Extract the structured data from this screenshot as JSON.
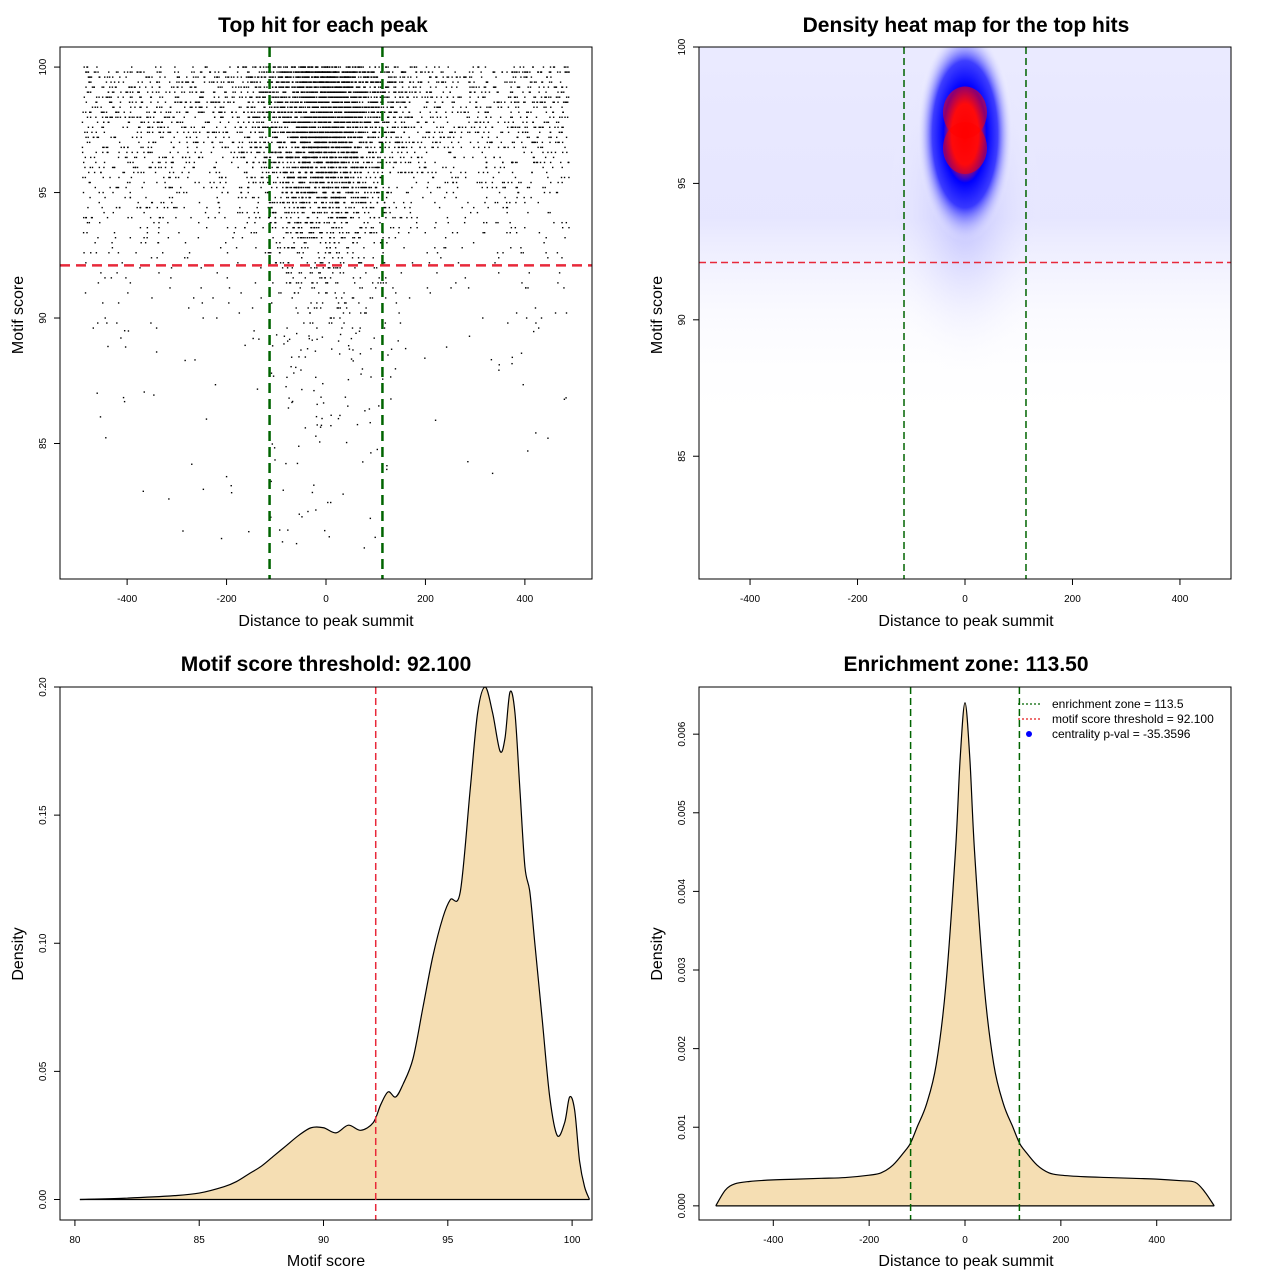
{
  "chart_data": [
    {
      "type": "scatter",
      "title": "Top hit for each peak",
      "xlabel": "Distance to peak summit",
      "ylabel": "Motif score",
      "xlim": [
        -535,
        535
      ],
      "ylim": [
        79.6,
        100.8
      ],
      "xticks": [
        -400,
        -200,
        0,
        200,
        400
      ],
      "yticks": [
        85,
        90,
        95,
        100
      ],
      "vlines": [
        -113.5,
        113.5
      ],
      "hline": 92.1,
      "point_model": {
        "x_range": [
          -490,
          490
        ],
        "y_range": [
          80.8,
          100
        ],
        "central_sd": 70,
        "score_rows_from": 89.5,
        "approx_points": 6000
      }
    },
    {
      "type": "heatmap",
      "title": "Density heat map for the top hits",
      "xlabel": "Distance to peak summit",
      "ylabel": "Motif score",
      "xlim": [
        -495,
        495
      ],
      "ylim": [
        80.5,
        100
      ],
      "xticks": [
        -400,
        -200,
        0,
        200,
        400
      ],
      "yticks": [
        85,
        90,
        95,
        100
      ],
      "vlines": [
        -113.5,
        113.5
      ],
      "hline": 92.1,
      "peaks": [
        {
          "x": 0,
          "y": 97.6,
          "amp": 1.0
        },
        {
          "x": 0,
          "y": 96.3,
          "amp": 1.0
        }
      ]
    },
    {
      "type": "area",
      "title": "Motif score threshold: 92.100",
      "xlabel": "Motif score",
      "ylabel": "Density",
      "xlim": [
        79.4,
        100.8
      ],
      "ylim": [
        -0.008,
        0.2
      ],
      "xticks": [
        80,
        85,
        90,
        95,
        100
      ],
      "yticks": [
        0.0,
        0.05,
        0.1,
        0.15,
        0.2
      ],
      "ytick_labels": [
        "0.00",
        "0.05",
        "0.10",
        "0.15",
        "0.20"
      ],
      "vline": 92.1,
      "x": [
        80.2,
        82,
        84,
        85,
        86,
        86.5,
        87,
        87.5,
        88,
        88.5,
        89,
        89.5,
        90,
        90.5,
        91,
        91.5,
        92,
        92.3,
        92.6,
        92.9,
        93.2,
        93.6,
        94,
        94.4,
        94.8,
        95.1,
        95.5,
        95.9,
        96.2,
        96.5,
        96.8,
        97.1,
        97.3,
        97.5,
        97.7,
        97.9,
        98.1,
        98.3,
        98.5,
        98.8,
        99.1,
        99.4,
        99.7,
        99.9,
        100.1,
        100.3,
        100.5,
        100.7
      ],
      "y": [
        0.0,
        0.0005,
        0.0015,
        0.0025,
        0.005,
        0.007,
        0.01,
        0.013,
        0.017,
        0.021,
        0.025,
        0.028,
        0.028,
        0.026,
        0.029,
        0.027,
        0.03,
        0.037,
        0.042,
        0.04,
        0.045,
        0.055,
        0.075,
        0.095,
        0.11,
        0.117,
        0.12,
        0.16,
        0.19,
        0.2,
        0.19,
        0.175,
        0.18,
        0.198,
        0.19,
        0.16,
        0.13,
        0.12,
        0.1,
        0.07,
        0.04,
        0.025,
        0.03,
        0.04,
        0.035,
        0.015,
        0.005,
        0.0
      ]
    },
    {
      "type": "area",
      "title": "Enrichment zone: 113.50",
      "xlabel": "Distance to peak summit",
      "ylabel": "Density",
      "xlim": [
        -555,
        555
      ],
      "ylim": [
        -0.00018,
        0.0066
      ],
      "xticks": [
        -400,
        -200,
        0,
        200,
        400
      ],
      "yticks": [
        0.0,
        0.001,
        0.002,
        0.003,
        0.004,
        0.005,
        0.006
      ],
      "ytick_labels": [
        "0.000",
        "0.001",
        "0.002",
        "0.003",
        "0.004",
        "0.005",
        "0.006"
      ],
      "vlines": [
        -113.5,
        113.5
      ],
      "x": [
        -520,
        -500,
        -480,
        -450,
        -400,
        -350,
        -300,
        -250,
        -200,
        -175,
        -150,
        -125,
        -113.5,
        -100,
        -80,
        -60,
        -40,
        -20,
        -10,
        0,
        10,
        20,
        40,
        60,
        80,
        100,
        113.5,
        125,
        150,
        175,
        200,
        250,
        300,
        350,
        400,
        450,
        480,
        500,
        520
      ],
      "y": [
        0.0,
        0.0002,
        0.00028,
        0.00031,
        0.00033,
        0.00034,
        0.00035,
        0.00036,
        0.00039,
        0.00042,
        0.00052,
        0.0007,
        0.0008,
        0.001,
        0.0013,
        0.0018,
        0.0028,
        0.0045,
        0.0057,
        0.0064,
        0.0057,
        0.0045,
        0.0028,
        0.0018,
        0.0013,
        0.001,
        0.0008,
        0.0007,
        0.00052,
        0.00042,
        0.00039,
        0.00037,
        0.00036,
        0.00035,
        0.00034,
        0.00032,
        0.0003,
        0.00018,
        0.0
      ],
      "legend": {
        "position": "top-right",
        "entries": [
          {
            "label": "enrichment zone = 113.5",
            "color": "#006400",
            "style": "dotted-line"
          },
          {
            "label": "motif score threshold = 92.100",
            "color": "#e41a1c",
            "style": "dotted-line"
          },
          {
            "label": "centrality p-val = -35.3596",
            "color": "#0000ff",
            "style": "point"
          }
        ]
      }
    }
  ],
  "colors": {
    "green": "#006400",
    "red": "#e8293a",
    "fill": "#f5deb3",
    "blue": "#0000ff"
  }
}
